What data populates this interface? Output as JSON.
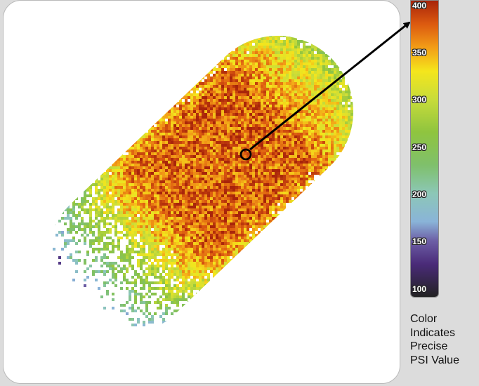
{
  "chart_data": {
    "type": "heatmap",
    "title": "",
    "colorbar": {
      "ticks": [
        400,
        350,
        300,
        250,
        200,
        150,
        100
      ],
      "range": [
        90,
        405
      ],
      "colors": [
        {
          "v": 405,
          "c": "#a8240a"
        },
        {
          "v": 380,
          "c": "#dc5a10"
        },
        {
          "v": 355,
          "c": "#f39e17"
        },
        {
          "v": 330,
          "c": "#f4e61c"
        },
        {
          "v": 300,
          "c": "#c8dc3a"
        },
        {
          "v": 265,
          "c": "#8fc43f"
        },
        {
          "v": 230,
          "c": "#7fc06c"
        },
        {
          "v": 200,
          "c": "#8cc7b7"
        },
        {
          "v": 170,
          "c": "#8ab4d8"
        },
        {
          "v": 150,
          "c": "#6d5fa6"
        },
        {
          "v": 125,
          "c": "#4a2b79"
        },
        {
          "v": 90,
          "c": "#222222"
        }
      ]
    },
    "caption": [
      "Color",
      "Indicates",
      "Precise",
      "PSI Value"
    ],
    "pressure_map": {
      "shape": "capsule",
      "peak_value": 375,
      "edge_value_high_side": 330,
      "low_side_value": 225,
      "highlighted_point_value": 380
    }
  }
}
